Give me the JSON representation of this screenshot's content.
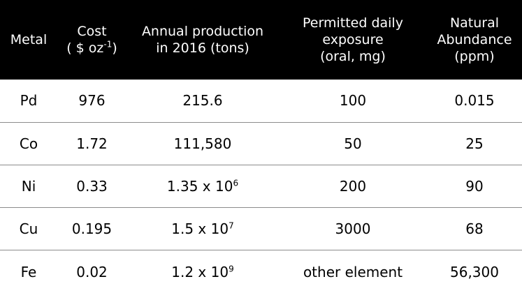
{
  "header": {
    "metal": "Metal",
    "cost": {
      "line1": "Cost",
      "line2_main": "( $  oz",
      "line2_sup": "-1",
      "line2_end": ")"
    },
    "production": {
      "line1": "Annual production",
      "line2": "in 2016 (tons)"
    },
    "exposure": {
      "line1": "Permitted daily",
      "line2": "exposure",
      "line3": "(oral, mg)"
    },
    "abundance": {
      "line1": "Natural",
      "line2": "Abundance",
      "line3": "(ppm)"
    }
  },
  "rows": [
    {
      "metal": "Pd",
      "cost": "976",
      "prod_base": "215.6",
      "prod_exp": "",
      "exposure": "100",
      "abundance": "0.015"
    },
    {
      "metal": "Co",
      "cost": "1.72",
      "prod_base": "111,580",
      "prod_exp": "",
      "exposure": "50",
      "abundance": "25"
    },
    {
      "metal": "Ni",
      "cost": "0.33",
      "prod_base": "1.35 x 10",
      "prod_exp": "6",
      "exposure": "200",
      "abundance": "90"
    },
    {
      "metal": "Cu",
      "cost": "0.195",
      "prod_base": "1.5 x 10",
      "prod_exp": "7",
      "exposure": "3000",
      "abundance": "68"
    },
    {
      "metal": "Fe",
      "cost": "0.02",
      "prod_base": "1.2 x 10",
      "prod_exp": "9",
      "exposure": "other element",
      "abundance": "56,300"
    }
  ]
}
